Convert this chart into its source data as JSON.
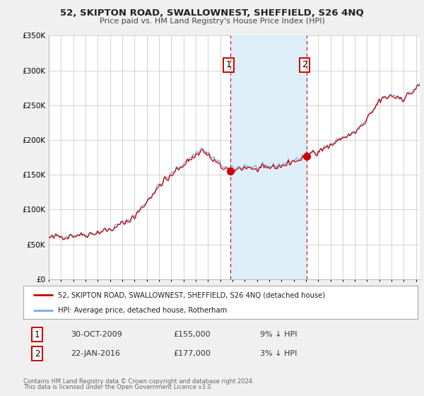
{
  "title_line1": "52, SKIPTON ROAD, SWALLOWNEST, SHEFFIELD, S26 4NQ",
  "title_line2": "Price paid vs. HM Land Registry's House Price Index (HPI)",
  "legend_label_red": "52, SKIPTON ROAD, SWALLOWNEST, SHEFFIELD, S26 4NQ (detached house)",
  "legend_label_blue": "HPI: Average price, detached house, Rotherham",
  "annotation1_date": "30-OCT-2009",
  "annotation1_price": "£155,000",
  "annotation1_hpi": "9% ↓ HPI",
  "annotation2_date": "22-JAN-2016",
  "annotation2_price": "£177,000",
  "annotation2_hpi": "3% ↓ HPI",
  "footer_line1": "Contains HM Land Registry data © Crown copyright and database right 2024.",
  "footer_line2": "This data is licensed under the Open Government Licence v3.0.",
  "ylim": [
    0,
    350000
  ],
  "yticks": [
    0,
    50000,
    100000,
    150000,
    200000,
    250000,
    300000,
    350000
  ],
  "ytick_labels": [
    "£0",
    "£50K",
    "£100K",
    "£150K",
    "£200K",
    "£250K",
    "£300K",
    "£350K"
  ],
  "vline1_x": 2009.833,
  "vline2_x": 2016.042,
  "marker1_x": 2009.833,
  "marker1_y": 155000,
  "marker2_x": 2016.042,
  "marker2_y": 177000,
  "price1": 155000,
  "price2": 177000,
  "shade_color": "#ddeef8",
  "red_color": "#cc0000",
  "blue_color": "#7aacdb",
  "background_color": "#f0f0f0",
  "plot_bg_color": "#ffffff",
  "grid_color": "#cccccc",
  "xlim_start": 1995.0,
  "xlim_end": 2025.3
}
